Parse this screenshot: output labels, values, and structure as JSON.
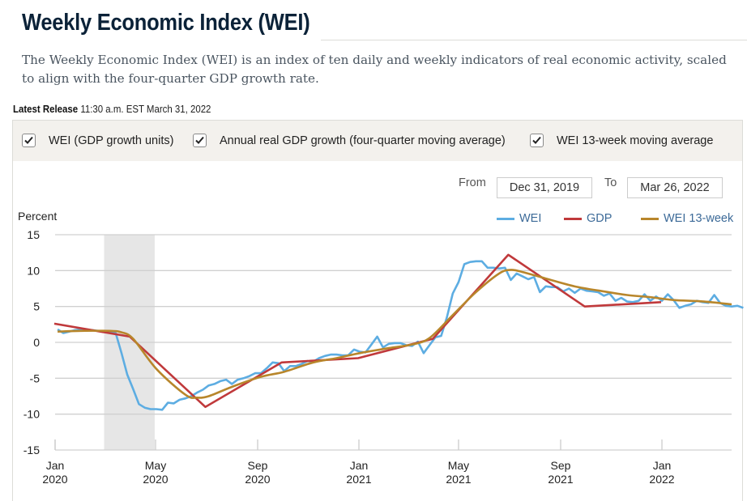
{
  "page": {
    "title": "Weekly Economic Index (WEI)",
    "description": "The Weekly Economic Index (WEI) is an index of ten daily and weekly indicators of real economic activity, scaled to align with the four-quarter GDP growth rate.",
    "release_label": "Latest Release",
    "release_value": "11:30 a.m. EST March 31, 2022"
  },
  "toggles": [
    {
      "label": "WEI (GDP growth units)",
      "checked": true
    },
    {
      "label": "Annual real GDP growth (four-quarter moving average)",
      "checked": true
    },
    {
      "label": "WEI 13-week moving average",
      "checked": true
    }
  ],
  "date_range": {
    "from_label": "From",
    "from_value": "Dec 31, 2019",
    "to_label": "To",
    "to_value": "Mar 26, 2022"
  },
  "colors": {
    "wei": "#5dade2",
    "gdp": "#c0393b",
    "wei13": "#b8862b",
    "recession": "#e6e6e6",
    "grid": "#d0d0d0"
  },
  "chart_data": {
    "type": "line",
    "title": "Weekly Economic Index (WEI)",
    "xlabel": "",
    "ylabel": "Percent",
    "ylim": [
      -15,
      15
    ],
    "yticks": [
      "15",
      "10",
      "5",
      "0",
      "-5",
      "-10",
      "-15"
    ],
    "xlim": [
      "2019-12-31",
      "2022-03-26"
    ],
    "xticks": [
      {
        "date": "2020-01-01",
        "line1": "Jan",
        "line2": "2020"
      },
      {
        "date": "2020-05-01",
        "line1": "May",
        "line2": "2020"
      },
      {
        "date": "2020-09-01",
        "line1": "Sep",
        "line2": "2020"
      },
      {
        "date": "2021-01-01",
        "line1": "Jan",
        "line2": "2021"
      },
      {
        "date": "2021-05-01",
        "line1": "May",
        "line2": "2021"
      },
      {
        "date": "2021-09-01",
        "line1": "Sep",
        "line2": "2021"
      },
      {
        "date": "2022-01-01",
        "line1": "Jan",
        "line2": "2022"
      }
    ],
    "grid": true,
    "legend_position": "top-right",
    "recession_band": {
      "start": "2020-02-29",
      "end": "2020-04-30"
    },
    "series": [
      {
        "name": "WEI",
        "key": "wei",
        "start": "2020-01-04",
        "step_days": 7,
        "values": [
          1.8,
          1.3,
          1.5,
          1.7,
          1.8,
          1.7,
          1.7,
          1.6,
          1.5,
          1.4,
          1.3,
          -1.5,
          -4.5,
          -6.5,
          -8.6,
          -9.1,
          -9.3,
          -9.3,
          -9.4,
          -8.4,
          -8.5,
          -8.0,
          -7.8,
          -7.5,
          -7.0,
          -6.6,
          -6.0,
          -5.8,
          -5.4,
          -5.2,
          -5.8,
          -5.2,
          -5.0,
          -4.7,
          -4.3,
          -4.3,
          -3.6,
          -2.8,
          -2.9,
          -4.0,
          -3.3,
          -3.3,
          -3.0,
          -2.6,
          -2.7,
          -2.2,
          -1.9,
          -1.7,
          -1.7,
          -1.8,
          -1.8,
          -1.0,
          -1.3,
          -1.4,
          -0.3,
          0.8,
          -0.7,
          -0.2,
          -0.1,
          -0.1,
          -0.4,
          -0.5,
          0.1,
          -1.5,
          -0.4,
          0.7,
          0.9,
          3.5,
          6.8,
          8.4,
          10.9,
          11.2,
          11.3,
          11.3,
          10.4,
          10.4,
          10.3,
          10.4,
          8.7,
          9.6,
          9.2,
          8.8,
          9.1,
          7.0,
          7.8,
          7.7,
          7.7,
          7.1,
          7.5,
          6.9,
          7.5,
          7.2,
          7.1,
          7.0,
          6.5,
          6.8,
          5.8,
          6.2,
          5.7,
          5.6,
          5.8,
          6.7,
          5.8,
          6.4,
          5.8,
          6.7,
          5.9,
          4.8,
          5.1,
          5.3,
          5.8,
          5.6,
          5.5,
          6.6,
          5.5,
          5.1,
          5.0,
          5.1,
          4.8
        ]
      },
      {
        "name": "GDP",
        "key": "gdp",
        "points": [
          {
            "date": "2019-12-31",
            "value": 2.6
          },
          {
            "date": "2020-03-31",
            "value": 0.8
          },
          {
            "date": "2020-06-30",
            "value": -9.0
          },
          {
            "date": "2020-09-30",
            "value": -2.8
          },
          {
            "date": "2020-12-31",
            "value": -2.2
          },
          {
            "date": "2021-03-31",
            "value": 0.5
          },
          {
            "date": "2021-06-30",
            "value": 12.2
          },
          {
            "date": "2021-09-30",
            "value": 5.0
          },
          {
            "date": "2021-12-31",
            "value": 5.6
          }
        ]
      },
      {
        "name": "WEI 13-week",
        "key": "wei13",
        "points": [
          {
            "date": "2020-01-04",
            "value": 1.5
          },
          {
            "date": "2020-02-01",
            "value": 1.6
          },
          {
            "date": "2020-03-07",
            "value": 1.6
          },
          {
            "date": "2020-03-21",
            "value": 1.4
          },
          {
            "date": "2020-04-04",
            "value": 0.5
          },
          {
            "date": "2020-05-02",
            "value": -3.7
          },
          {
            "date": "2020-06-06",
            "value": -7.3
          },
          {
            "date": "2020-06-20",
            "value": -7.7
          },
          {
            "date": "2020-07-04",
            "value": -7.5
          },
          {
            "date": "2020-08-01",
            "value": -6.2
          },
          {
            "date": "2020-09-05",
            "value": -4.8
          },
          {
            "date": "2020-10-03",
            "value": -4.1
          },
          {
            "date": "2020-11-07",
            "value": -2.8
          },
          {
            "date": "2020-12-05",
            "value": -2.2
          },
          {
            "date": "2021-01-02",
            "value": -1.5
          },
          {
            "date": "2021-02-06",
            "value": -0.8
          },
          {
            "date": "2021-03-06",
            "value": -0.3
          },
          {
            "date": "2021-03-27",
            "value": 0.6
          },
          {
            "date": "2021-04-24",
            "value": 3.8
          },
          {
            "date": "2021-05-22",
            "value": 7.0
          },
          {
            "date": "2021-06-19",
            "value": 9.6
          },
          {
            "date": "2021-07-03",
            "value": 10.1
          },
          {
            "date": "2021-07-17",
            "value": 9.8
          },
          {
            "date": "2021-08-14",
            "value": 8.9
          },
          {
            "date": "2021-09-18",
            "value": 7.8
          },
          {
            "date": "2021-10-23",
            "value": 7.1
          },
          {
            "date": "2021-11-20",
            "value": 6.6
          },
          {
            "date": "2021-12-18",
            "value": 6.3
          },
          {
            "date": "2022-01-15",
            "value": 5.9
          },
          {
            "date": "2022-02-19",
            "value": 5.7
          },
          {
            "date": "2022-03-26",
            "value": 5.3
          }
        ]
      }
    ]
  }
}
